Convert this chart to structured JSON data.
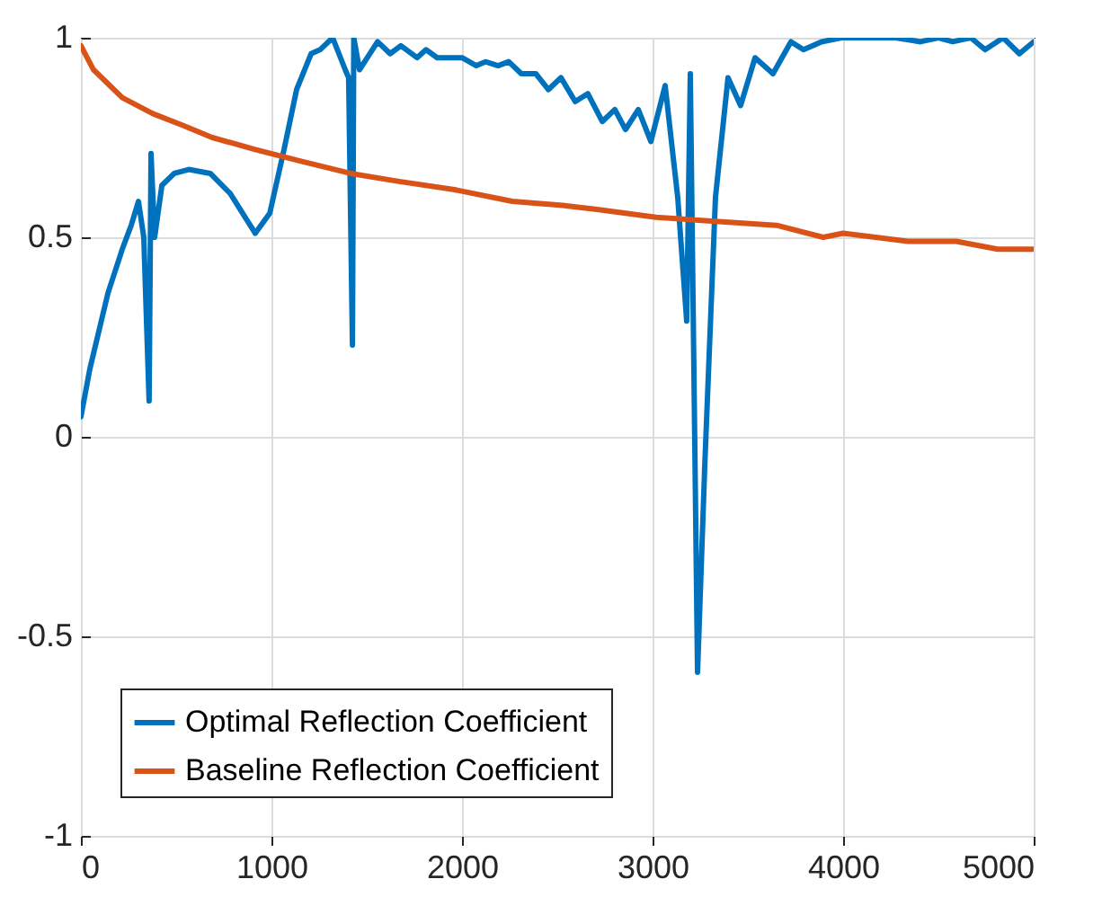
{
  "chart_data": {
    "type": "line",
    "xlim": [
      0,
      5000
    ],
    "ylim": [
      -1,
      1
    ],
    "xticks": [
      0,
      1000,
      2000,
      3000,
      4000,
      5000
    ],
    "yticks": [
      -1,
      -0.5,
      0,
      0.5,
      1
    ],
    "grid": true,
    "legend": "bottom left",
    "line_style": "solid",
    "marker": "none",
    "series": [
      {
        "name": "Optimal Reflection Coefficient",
        "color": "#0072bd",
        "x": [
          0,
          47,
          142,
          217,
          264,
          302,
          330,
          358,
          368,
          387,
          425,
          490,
          566,
          679,
          783,
          849,
          915,
          991,
          1066,
          1132,
          1208,
          1255,
          1321,
          1387,
          1405,
          1425,
          1432,
          1462,
          1557,
          1623,
          1679,
          1764,
          1811,
          1870,
          2000,
          2075,
          2123,
          2189,
          2245,
          2311,
          2387,
          2453,
          2519,
          2594,
          2660,
          2736,
          2802,
          2858,
          2925,
          2991,
          3066,
          3132,
          3179,
          3198,
          3236,
          3274,
          3330,
          3396,
          3462,
          3538,
          3632,
          3726,
          3792,
          3887,
          3991,
          4274,
          4406,
          4500,
          4575,
          4670,
          4745,
          4840,
          4925,
          5000
        ],
        "values": [
          0.05,
          0.17,
          0.36,
          0.47,
          0.53,
          0.59,
          0.5,
          0.09,
          0.71,
          0.5,
          0.63,
          0.66,
          0.67,
          0.66,
          0.61,
          0.56,
          0.51,
          0.56,
          0.72,
          0.87,
          0.96,
          0.97,
          1.0,
          0.92,
          0.9,
          0.23,
          1.0,
          0.92,
          0.99,
          0.96,
          0.98,
          0.95,
          0.97,
          0.95,
          0.95,
          0.93,
          0.94,
          0.93,
          0.94,
          0.91,
          0.91,
          0.87,
          0.9,
          0.84,
          0.86,
          0.79,
          0.82,
          0.77,
          0.82,
          0.74,
          0.88,
          0.6,
          0.29,
          0.91,
          -0.59,
          -0.07,
          0.6,
          0.9,
          0.83,
          0.95,
          0.91,
          0.99,
          0.97,
          0.99,
          1.0,
          1.0,
          0.99,
          1.0,
          0.99,
          1.0,
          0.97,
          1.0,
          0.96,
          0.99
        ]
      },
      {
        "name": "Baseline Reflection Coefficient",
        "color": "#d95319",
        "x": [
          0,
          66,
          217,
          377,
          538,
          689,
          915,
          1160,
          1415,
          1670,
          1953,
          2264,
          2528,
          2708,
          3019,
          3330,
          3651,
          3896,
          4000,
          4340,
          4594,
          4811,
          5000
        ],
        "values": [
          0.98,
          0.92,
          0.85,
          0.81,
          0.78,
          0.75,
          0.72,
          0.69,
          0.66,
          0.64,
          0.62,
          0.59,
          0.58,
          0.57,
          0.55,
          0.54,
          0.53,
          0.5,
          0.51,
          0.49,
          0.49,
          0.47,
          0.47
        ]
      }
    ]
  }
}
